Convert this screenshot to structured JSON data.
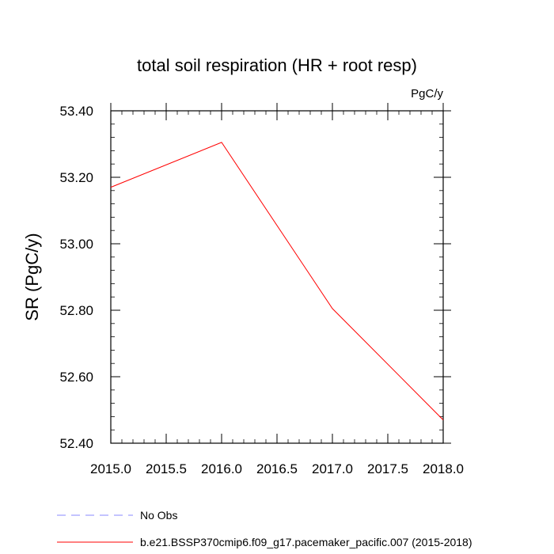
{
  "chart_data": {
    "type": "line",
    "title": "total soil respiration (HR + root resp)",
    "units": "PgC/y",
    "xlabel": "",
    "ylabel": "SR  (PgC/y)",
    "xlim": [
      2015.0,
      2018.0
    ],
    "ylim": [
      52.4,
      53.4
    ],
    "x_ticks": [
      2015.0,
      2015.5,
      2016.0,
      2016.5,
      2017.0,
      2017.5,
      2018.0
    ],
    "x_tick_labels": [
      "2015.0",
      "2015.5",
      "2016.0",
      "2016.5",
      "2017.0",
      "2017.5",
      "2018.0"
    ],
    "y_ticks": [
      52.4,
      52.6,
      52.8,
      53.0,
      53.2,
      53.4
    ],
    "y_tick_labels": [
      "52.40",
      "52.60",
      "52.80",
      "53.00",
      "53.20",
      "53.40"
    ],
    "grid": false,
    "legend_position": "bottom",
    "series": [
      {
        "name": "b.e21.BSSP370cmip6.f09_g17.pacemaker_pacific.007 (2015-2018)",
        "color": "#ff0000",
        "style": "solid",
        "x": [
          2015.0,
          2016.0,
          2017.0,
          2018.0
        ],
        "values": [
          53.17,
          53.305,
          52.805,
          52.47
        ]
      }
    ],
    "legend": [
      {
        "label": "No Obs",
        "color": "#8a8aff",
        "style": "dashed"
      },
      {
        "label": "b.e21.BSSP370cmip6.f09_g17.pacemaker_pacific.007 (2015-2018)",
        "color": "#ff0000",
        "style": "solid"
      }
    ]
  }
}
